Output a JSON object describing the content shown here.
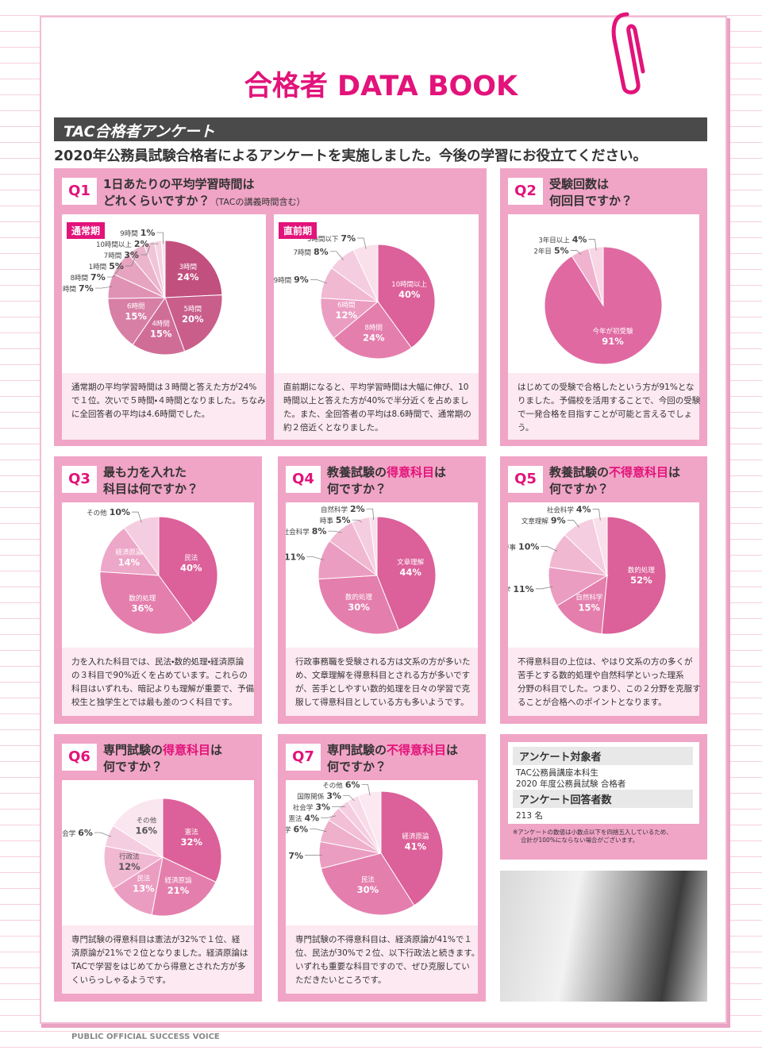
{
  "header": {
    "title": "合格者 DATA BOOK",
    "section": "TAC合格者アンケート",
    "lead": "2020年公務員試験合格者によるアンケートを実施しました。今後の学習にお役立てください。"
  },
  "questions": [
    {
      "number": "Q1",
      "title": [
        [
          {
            "text": "1日あたりの平均学習時間は"
          }
        ],
        [
          {
            "text": "どれくらいですか？"
          },
          {
            "text": "（TACの講義時間含む）",
            "size": "small"
          }
        ]
      ]
    },
    {
      "number": "Q2",
      "title": [
        [
          {
            "text": "受験回数は"
          }
        ],
        [
          {
            "text": "何回目ですか？"
          }
        ]
      ]
    },
    {
      "number": "Q3",
      "title": [
        [
          {
            "text": "最も力を入れた"
          }
        ],
        [
          {
            "text": "科目は何ですか？"
          }
        ]
      ]
    },
    {
      "number": "Q4",
      "title": [
        [
          {
            "text": "教養試験の"
          },
          {
            "text": "得意科目",
            "em": true
          },
          {
            "text": "は"
          }
        ],
        [
          {
            "text": "何ですか？"
          }
        ]
      ]
    },
    {
      "number": "Q5",
      "title": [
        [
          {
            "text": "教養試験の"
          },
          {
            "text": "不得意科目",
            "em": true
          },
          {
            "text": "は"
          }
        ],
        [
          {
            "text": "何ですか？"
          }
        ]
      ]
    },
    {
      "number": "Q6",
      "title": [
        [
          {
            "text": "専門試験の"
          },
          {
            "text": "得意科目",
            "em": true
          },
          {
            "text": "は"
          }
        ],
        [
          {
            "text": "何ですか？"
          }
        ]
      ]
    },
    {
      "number": "Q7",
      "title": [
        [
          {
            "text": "専門試験の"
          },
          {
            "text": "不得意科目",
            "em": true
          },
          {
            "text": "は"
          }
        ],
        [
          {
            "text": "何ですか？"
          }
        ]
      ]
    }
  ],
  "chart_data": [
    {
      "type": "pie",
      "title": "通常期",
      "categories": [
        "3時間",
        "5時間",
        "4時間",
        "6時間",
        "2時間",
        "8時間",
        "1時間",
        "7時間",
        "10時間以上",
        "9時間"
      ],
      "values": [
        24,
        20,
        15,
        15,
        7,
        7,
        5,
        3,
        2,
        1
      ],
      "value_labels": [
        "24%",
        "20%",
        "15%",
        "15%",
        "7%",
        "7%",
        "5%",
        "3%",
        "2%",
        "1%"
      ],
      "colors": [
        "#c2507f",
        "#c95e8b",
        "#d06d97",
        "#d87fa5",
        "#e092b4",
        "#e6a4c0",
        "#ebb5cc",
        "#f0c5d7",
        "#f4d4e1",
        "#f8e2eb"
      ],
      "note": [
        "通常期の平均学習時間は３時間と答えた方が24%",
        "で１位。次いで５時間・４時間となりました。ちなみ",
        "に全回答者の平均は4.6時間でした。"
      ]
    },
    {
      "type": "pie",
      "title": "直前期",
      "categories": [
        "10時間以上",
        "8時間",
        "6時間",
        "9時間",
        "7時間",
        "5時間以下"
      ],
      "values": [
        40,
        24,
        12,
        9,
        8,
        7
      ],
      "value_labels": [
        "40%",
        "24%",
        "12%",
        "9%",
        "8%",
        "7%"
      ],
      "colors": [
        "#dc6099",
        "#e47ead",
        "#eb9dc1",
        "#f1b8d2",
        "#f5cde0",
        "#f9e0eb"
      ],
      "note": [
        "直前期になると、平均学習時間は大幅に伸び、10",
        "時間以上と答えた方が40%で半分近くを占めまし",
        "た。また、全回答者の平均は8.6時間で、通常期の",
        "約２倍近くとなりました。"
      ]
    },
    {
      "type": "pie",
      "categories": [
        "今年が初受験",
        "2年目",
        "3年目以上"
      ],
      "values": [
        91,
        5,
        4
      ],
      "value_labels": [
        "91%",
        "5%",
        "4%"
      ],
      "colors": [
        "#e069a2",
        "#f0b3cf",
        "#f7d6e5"
      ],
      "note": [
        "はじめての受験で合格したという方が91%とな",
        "りました。予備校を活用することで、今回の受験",
        "で一発合格を目指すことが可能と言えるでしょ",
        "う。"
      ]
    },
    {
      "type": "pie",
      "categories": [
        "民法",
        "数的処理",
        "経済原論",
        "その他"
      ],
      "values": [
        40,
        36,
        14,
        10
      ],
      "value_labels": [
        "40%",
        "36%",
        "14%",
        "10%"
      ],
      "colors": [
        "#dc6099",
        "#e47ead",
        "#eda7c8",
        "#f5cde0"
      ],
      "note": [
        "力を入れた科目では、民法・数的処理・経済原論",
        "の３科目で90%近くを占めています。これらの",
        "科目はいずれも、暗記よりも理解が重要で、予備",
        "校生と独学生とでは最も差のつく科目です。"
      ]
    },
    {
      "type": "pie",
      "categories": [
        "文章理解",
        "数的処理",
        "人文科学",
        "社会科学",
        "時事",
        "自然科学"
      ],
      "values": [
        44,
        30,
        11,
        8,
        5,
        2
      ],
      "value_labels": [
        "44%",
        "30%",
        "11%",
        "8%",
        "5%",
        "2%"
      ],
      "colors": [
        "#dc6099",
        "#e47ead",
        "#eb9dc1",
        "#f1b8d2",
        "#f5cde0",
        "#f9e0eb"
      ],
      "note": [
        "行政事務職を受験される方は文系の方が多いた",
        "め、文章理解を得意科目とされる方が多いです",
        "が、苦手としやすい数的処理を日々の学習で克",
        "服して得意科目としている方も多いようです。"
      ]
    },
    {
      "type": "pie",
      "categories": [
        "数的処理",
        "自然科学",
        "人文科学",
        "時事",
        "文章理解",
        "社会科学"
      ],
      "values": [
        52,
        15,
        11,
        10,
        9,
        4
      ],
      "value_labels": [
        "52%",
        "15%",
        "11%",
        "10%",
        "9%",
        "4%"
      ],
      "colors": [
        "#dc6099",
        "#e47ead",
        "#eb9dc1",
        "#f1b8d2",
        "#f5cde0",
        "#f9e0eb"
      ],
      "note": [
        "不得意科目の上位は、やはり文系の方の多くが",
        "苦手とする数的処理や自然科学といった理系",
        "分野の科目でした。つまり、この２分野を克服す",
        "ることが合格へのポイントとなります。"
      ]
    },
    {
      "type": "pie",
      "categories": [
        "憲法",
        "経済原論",
        "民法",
        "行政法",
        "社会学",
        "その他"
      ],
      "values": [
        32,
        21,
        13,
        12,
        6,
        16
      ],
      "value_labels": [
        "32%",
        "21%",
        "13%",
        "12%",
        "6%",
        "16%"
      ],
      "colors": [
        "#dc6099",
        "#e47ead",
        "#eb9dc1",
        "#f1b8d2",
        "#f5cde0",
        "#fae6ef"
      ],
      "note": [
        "専門試験の得意科目は憲法が32%で１位、経",
        "済原論が21%で２位となりました。経済原論は",
        "TACで学習をはじめてから得意とされた方が多",
        "くいらっしゃるようです。"
      ]
    },
    {
      "type": "pie",
      "categories": [
        "経済原論",
        "民法",
        "行政法",
        "政治学",
        "憲法",
        "社会学",
        "国際関係",
        "その他"
      ],
      "values": [
        41,
        30,
        7,
        6,
        4,
        3,
        3,
        6
      ],
      "value_labels": [
        "41%",
        "30%",
        "7%",
        "6%",
        "4%",
        "3%",
        "3%",
        "6%"
      ],
      "colors": [
        "#dc6099",
        "#e47ead",
        "#eb9dc1",
        "#efb0cc",
        "#f2bfd6",
        "#f5cde0",
        "#f8dbe8",
        "#fbe8f0"
      ],
      "note": [
        "専門試験の不得意科目は、経済原論が41%で１",
        "位、民法が30%で２位、以下行政法と続きます。",
        "いずれも重要な科目ですので、ぜひ克服してい",
        "ただきたいところです。"
      ]
    }
  ],
  "info": {
    "items": [
      {
        "heading": "アンケート対象者",
        "text": [
          "TAC公務員講座本科生",
          "2020 年度公務員試験 合格者"
        ]
      },
      {
        "heading": "アンケート回答者数",
        "text": [
          "213 名"
        ]
      }
    ],
    "footnote": [
      "※アンケートの数値は小数点以下を四捨五入しているため、",
      "合計が100%にならない場合がございます。"
    ]
  },
  "footer": "PUBLIC OFFICIAL SUCCESS VOICE"
}
